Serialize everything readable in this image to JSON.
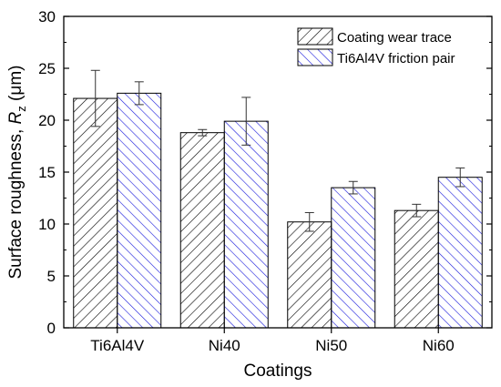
{
  "chart_data": {
    "type": "bar",
    "categories": [
      "Ti6Al4V",
      "Ni40",
      "Ni50",
      "Ni60"
    ],
    "series": [
      {
        "name": "Coating wear trace",
        "values": [
          22.1,
          18.8,
          10.2,
          11.3
        ],
        "errors": [
          2.7,
          0.3,
          0.9,
          0.6
        ],
        "color": "#000000"
      },
      {
        "name": "Ti6Al4V friction pair",
        "values": [
          22.6,
          19.9,
          13.5,
          14.5
        ],
        "errors": [
          1.1,
          2.3,
          0.6,
          0.9
        ],
        "color": "#1a1adc"
      }
    ],
    "xlabel": "Coatings",
    "ylabel_prefix": "Surface roughness, ",
    "ylabel_var": "R",
    "ylabel_sub": "z",
    "ylabel_unit": " (μm)",
    "ylim": [
      0,
      30
    ],
    "yticks": [
      "0",
      "5",
      "10",
      "15",
      "20",
      "25",
      "30"
    ],
    "legend_position": "top-right",
    "grid": false
  }
}
